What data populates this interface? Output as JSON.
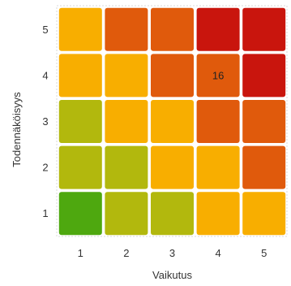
{
  "chart_data": {
    "type": "heatmap",
    "xlabel": "Vaikutus",
    "ylabel": "Todennäköisyys",
    "x_categories": [
      "1",
      "2",
      "3",
      "4",
      "5"
    ],
    "y_categories": [
      "1",
      "2",
      "3",
      "4",
      "5"
    ],
    "colors": {
      "green": "#4ea80f",
      "yellowgreen": "#b2b80d",
      "yellow": "#f8ae00",
      "orange": "#e05a0c",
      "red": "#c9150d",
      "frame": "#d9d9d9"
    },
    "cells": [
      {
        "x": 1,
        "y": 1,
        "color": "green"
      },
      {
        "x": 2,
        "y": 1,
        "color": "yellowgreen"
      },
      {
        "x": 3,
        "y": 1,
        "color": "yellowgreen"
      },
      {
        "x": 4,
        "y": 1,
        "color": "yellow"
      },
      {
        "x": 5,
        "y": 1,
        "color": "yellow"
      },
      {
        "x": 1,
        "y": 2,
        "color": "yellowgreen"
      },
      {
        "x": 2,
        "y": 2,
        "color": "yellowgreen"
      },
      {
        "x": 3,
        "y": 2,
        "color": "yellow"
      },
      {
        "x": 4,
        "y": 2,
        "color": "yellow"
      },
      {
        "x": 5,
        "y": 2,
        "color": "orange"
      },
      {
        "x": 1,
        "y": 3,
        "color": "yellowgreen"
      },
      {
        "x": 2,
        "y": 3,
        "color": "yellow"
      },
      {
        "x": 3,
        "y": 3,
        "color": "yellow"
      },
      {
        "x": 4,
        "y": 3,
        "color": "orange"
      },
      {
        "x": 5,
        "y": 3,
        "color": "orange"
      },
      {
        "x": 1,
        "y": 4,
        "color": "yellow"
      },
      {
        "x": 2,
        "y": 4,
        "color": "yellow"
      },
      {
        "x": 3,
        "y": 4,
        "color": "orange"
      },
      {
        "x": 4,
        "y": 4,
        "color": "orange",
        "label": "16"
      },
      {
        "x": 5,
        "y": 4,
        "color": "red"
      },
      {
        "x": 1,
        "y": 5,
        "color": "yellow"
      },
      {
        "x": 2,
        "y": 5,
        "color": "orange"
      },
      {
        "x": 3,
        "y": 5,
        "color": "orange"
      },
      {
        "x": 4,
        "y": 5,
        "color": "red"
      },
      {
        "x": 5,
        "y": 5,
        "color": "red"
      }
    ]
  }
}
